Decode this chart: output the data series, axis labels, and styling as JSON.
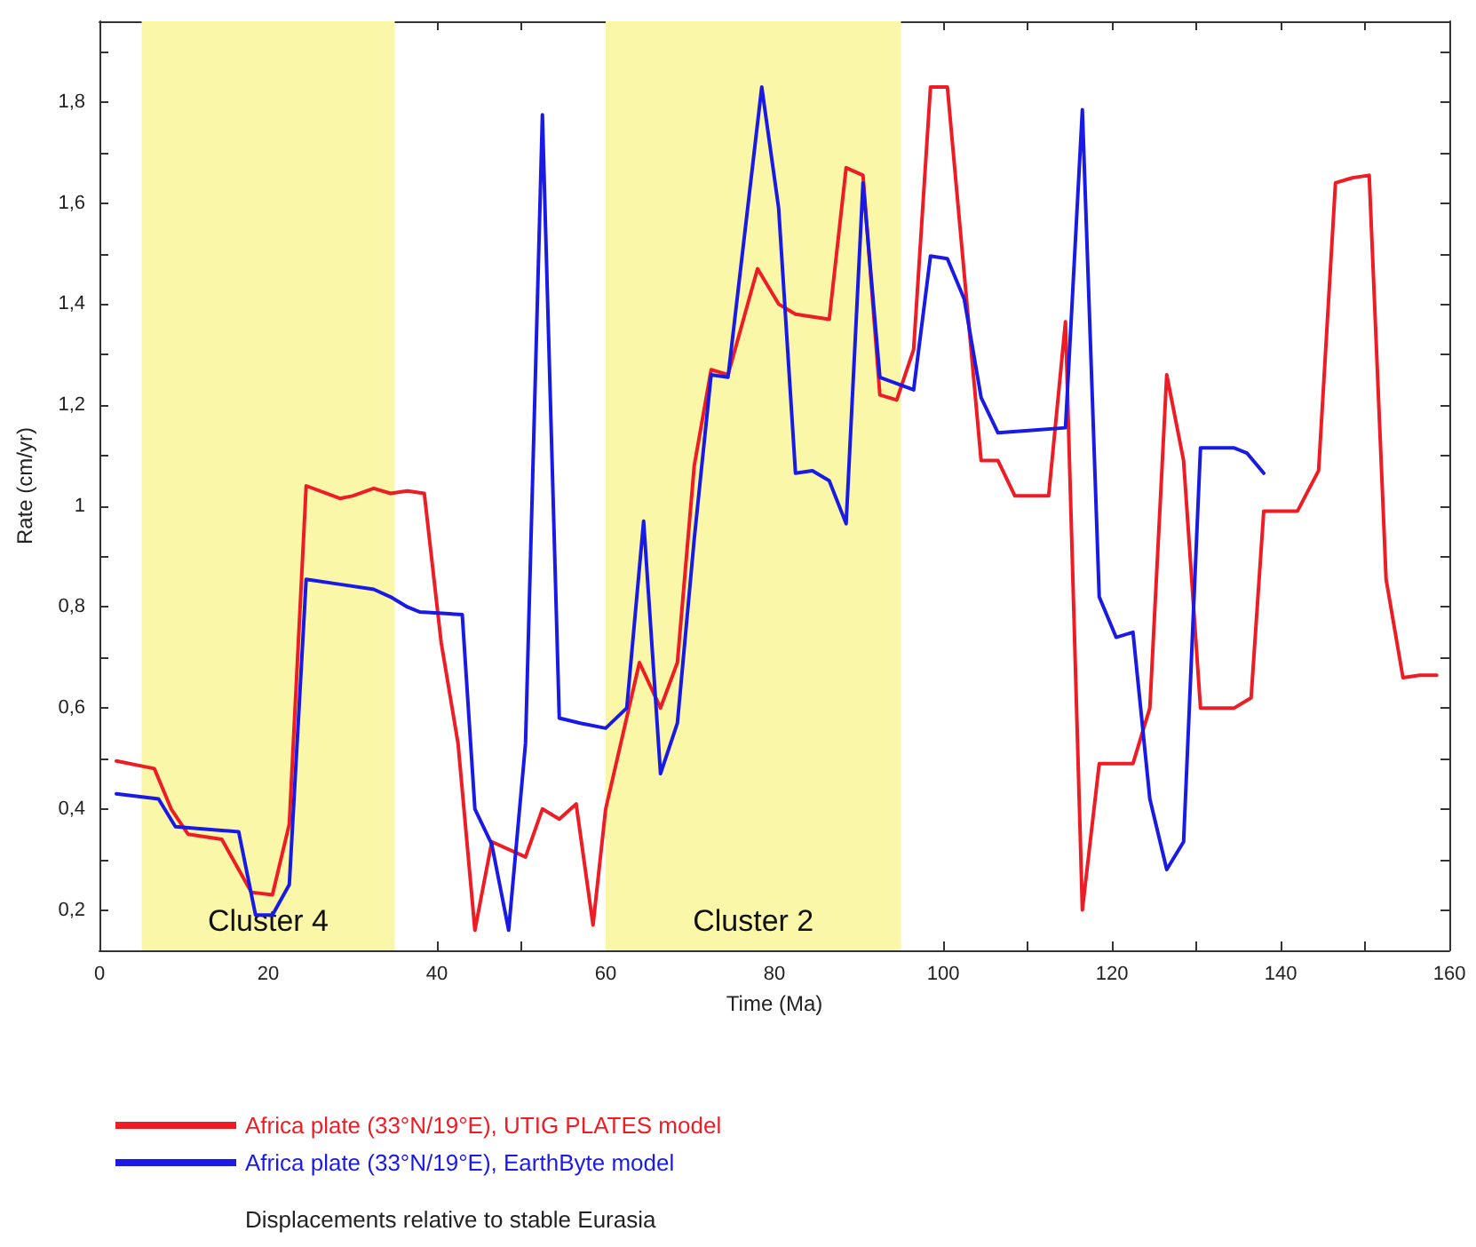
{
  "chart_data": {
    "type": "line",
    "xlabel": "Time (Ma)",
    "ylabel": "Rate (cm/yr)",
    "xlim": [
      0,
      160
    ],
    "ylim": [
      0.12,
      1.96
    ],
    "xticks": [
      0,
      {
        "value": 10,
        "label": null
      },
      20,
      {
        "value": 30,
        "label": null
      },
      40,
      {
        "value": 50,
        "label": null
      },
      60,
      {
        "value": 70,
        "label": null
      },
      80,
      {
        "value": 90,
        "label": null
      },
      100,
      {
        "value": 110,
        "label": null
      },
      120,
      {
        "value": 130,
        "label": null
      },
      140,
      {
        "value": 150,
        "label": null
      },
      160
    ],
    "yticks": [
      {
        "value": 0.2,
        "label": "0,2"
      },
      {
        "value": 0.3,
        "label": null
      },
      {
        "value": 0.4,
        "label": "0,4"
      },
      {
        "value": 0.5,
        "label": null
      },
      {
        "value": 0.6,
        "label": "0,6"
      },
      {
        "value": 0.7,
        "label": null
      },
      {
        "value": 0.8,
        "label": "0,8"
      },
      {
        "value": 0.9,
        "label": null
      },
      {
        "value": 1,
        "label": "1"
      },
      {
        "value": 1.1,
        "label": null
      },
      {
        "value": 1.2,
        "label": "1,2"
      },
      {
        "value": 1.3,
        "label": null
      },
      {
        "value": 1.4,
        "label": "1,4"
      },
      {
        "value": 1.5,
        "label": null
      },
      {
        "value": 1.6,
        "label": "1,6"
      },
      {
        "value": 1.7,
        "label": null
      },
      {
        "value": 1.8,
        "label": "1,8"
      },
      {
        "value": 1.9,
        "label": null
      }
    ],
    "grid": false,
    "legend": "bottom left",
    "marker": "none",
    "line_style": "solid",
    "bands": [
      {
        "axis": "x",
        "from": 5,
        "to": 35,
        "label": "Cluster 4",
        "color": "#fbf7a8"
      },
      {
        "axis": "x",
        "from": 60,
        "to": 95,
        "label": "Cluster 2",
        "color": "#fbf7a8"
      }
    ],
    "annotations": [
      "Displacements relative to stable Eurasia"
    ],
    "series": [
      {
        "name": "Africa plate (33°N/19°E), UTIG PLATES model",
        "color": "#ee1c24",
        "x": [
          2,
          6.5,
          8.5,
          10.5,
          14.5,
          16.5,
          18,
          20.5,
          22.5,
          24.5,
          28.5,
          30,
          32.5,
          34.5,
          36.5,
          38.5,
          40.5,
          42.5,
          44.5,
          46.5,
          50.5,
          52.5,
          54.5,
          56.5,
          58.5,
          60,
          64,
          66.5,
          68.5,
          70.5,
          72.5,
          74.5,
          78,
          80.5,
          82.5,
          86.5,
          88.5,
          90.5,
          92.5,
          94.5,
          96.5,
          98.5,
          100.5,
          104.5,
          106.5,
          108.5,
          112.5,
          114.5,
          116.5,
          118.5,
          122.5,
          124.5,
          126.5,
          128.5,
          130.5,
          134.5,
          136.5,
          138,
          142,
          144.5,
          146.5,
          148.5,
          150.5,
          152.5,
          154.5,
          156.5,
          158.5
        ],
        "values": [
          0.495,
          0.48,
          0.4,
          0.35,
          0.34,
          0.28,
          0.235,
          0.23,
          0.37,
          1.04,
          1.015,
          1.02,
          1.035,
          1.025,
          1.03,
          1.025,
          0.73,
          0.53,
          0.16,
          0.335,
          0.305,
          0.4,
          0.38,
          0.41,
          0.17,
          0.4,
          0.69,
          0.6,
          0.69,
          1.08,
          1.27,
          1.26,
          1.47,
          1.4,
          1.38,
          1.37,
          1.67,
          1.655,
          1.22,
          1.21,
          1.31,
          1.83,
          1.83,
          1.09,
          1.09,
          1.02,
          1.02,
          1.365,
          0.2,
          0.49,
          0.49,
          0.6,
          1.26,
          1.09,
          0.6,
          0.6,
          0.62,
          0.99,
          0.99,
          1.07,
          1.64,
          1.65,
          1.655,
          0.855,
          0.66,
          0.665,
          0.665
        ]
      },
      {
        "name": "Africa plate (33°N/19°E), EarthByte model",
        "color": "#1a1ae6",
        "x": [
          2,
          7,
          9,
          12.5,
          16.5,
          18.5,
          20.5,
          22.5,
          24.5,
          28.5,
          32.5,
          34.5,
          36.5,
          38,
          43,
          44.5,
          46.5,
          48.5,
          50.5,
          52.5,
          54.5,
          57,
          60,
          62.5,
          64.5,
          66.5,
          68.5,
          70.5,
          72.5,
          74.5,
          78.5,
          80.5,
          82.5,
          84.5,
          86.5,
          88.5,
          90.5,
          92.5,
          96.5,
          98.5,
          100.5,
          102.5,
          104.5,
          106.5,
          110.5,
          114.5,
          116.5,
          118.5,
          120.5,
          122.5,
          124.5,
          126.5,
          128.5,
          130.5,
          134.5,
          136,
          138
        ],
        "values": [
          0.43,
          0.42,
          0.365,
          0.36,
          0.355,
          0.19,
          0.19,
          0.25,
          0.855,
          0.845,
          0.835,
          0.82,
          0.8,
          0.79,
          0.785,
          0.4,
          0.33,
          0.16,
          0.53,
          1.775,
          0.58,
          0.57,
          0.56,
          0.6,
          0.97,
          0.47,
          0.57,
          0.935,
          1.26,
          1.255,
          1.83,
          1.59,
          1.065,
          1.07,
          1.05,
          0.965,
          1.64,
          1.255,
          1.23,
          1.495,
          1.49,
          1.41,
          1.215,
          1.145,
          1.15,
          1.155,
          1.785,
          0.82,
          0.74,
          0.75,
          0.42,
          0.28,
          0.335,
          1.115,
          1.115,
          1.105,
          1.065
        ]
      }
    ]
  }
}
